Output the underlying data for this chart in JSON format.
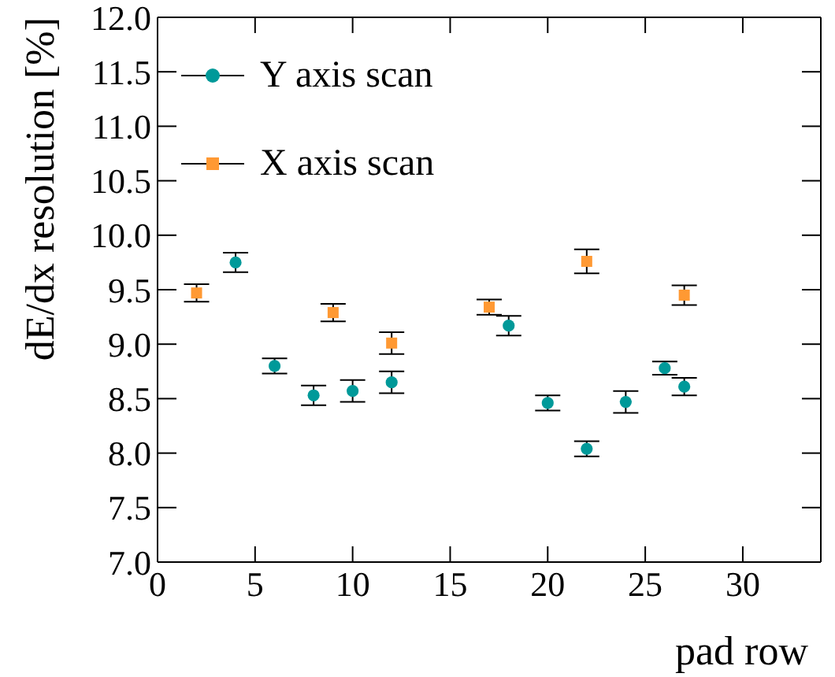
{
  "chart_data": {
    "type": "scatter",
    "xlabel": "pad row",
    "ylabel": "dE/dx resolution [%]",
    "xlim": [
      0,
      34
    ],
    "xticks": [
      0,
      5,
      10,
      15,
      20,
      25,
      30
    ],
    "ylim": [
      7,
      12
    ],
    "yticks": [
      {
        "value": 7,
        "label": "7.0"
      },
      {
        "value": 7.5,
        "label": "7.5"
      },
      {
        "value": 8,
        "label": "8.0"
      },
      {
        "value": 8.5,
        "label": "8.5"
      },
      {
        "value": 9,
        "label": "9.0"
      },
      {
        "value": 9.5,
        "label": "9.5"
      },
      {
        "value": 10,
        "label": "10.0"
      },
      {
        "value": 10.5,
        "label": "10.5"
      },
      {
        "value": 11,
        "label": "11.0"
      },
      {
        "value": 11.5,
        "label": "11.5"
      },
      {
        "value": 12,
        "label": "12.0"
      }
    ],
    "legend": "top left",
    "series": [
      {
        "name": "Y axis scan",
        "color": "#009999",
        "marker": "circle",
        "x": [
          4,
          6,
          8,
          10,
          12,
          18,
          20,
          22,
          24,
          26,
          27
        ],
        "values": [
          9.75,
          8.8,
          8.53,
          8.57,
          8.65,
          9.17,
          8.46,
          8.04,
          8.47,
          8.78,
          8.61
        ],
        "errors": [
          0.09,
          0.07,
          0.09,
          0.1,
          0.1,
          0.09,
          0.07,
          0.07,
          0.1,
          0.06,
          0.08
        ]
      },
      {
        "name": "X axis scan",
        "color": "#ff9933",
        "marker": "square",
        "x": [
          2,
          9,
          12,
          17,
          22,
          27
        ],
        "values": [
          9.47,
          9.29,
          9.01,
          9.34,
          9.76,
          9.45
        ],
        "errors": [
          0.08,
          0.08,
          0.1,
          0.07,
          0.11,
          0.09
        ]
      }
    ]
  }
}
